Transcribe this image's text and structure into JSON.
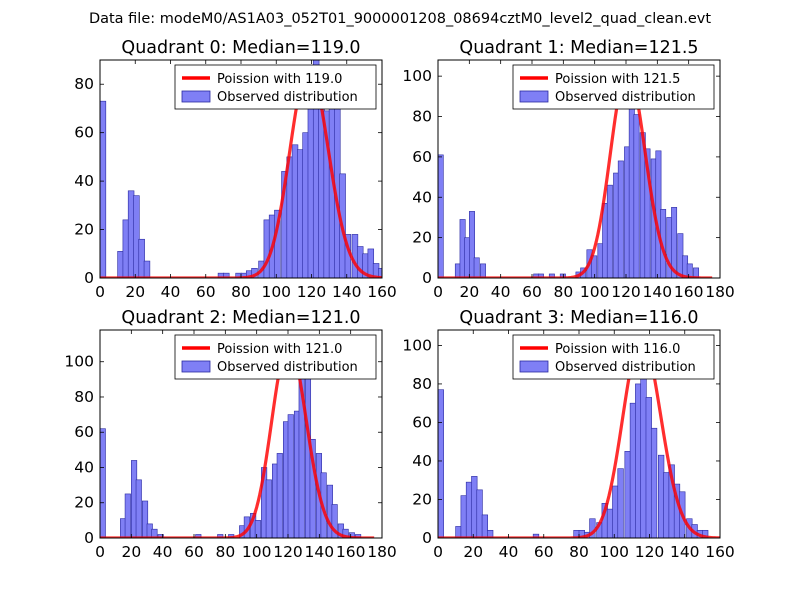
{
  "figure_title": "Data file: modeM0/AS1A03_052T01_9000001208_08694cztM0_level2_quad_clean.evt",
  "colors": {
    "bar_fill": "#7f7ff5",
    "bar_edge": "#2a2aa0",
    "poisson_line": "#ff0000",
    "axis": "#000000"
  },
  "chart_data": [
    {
      "type": "bar",
      "title": "Quadrant 0: Median=119.0",
      "median": 119.0,
      "xlim": [
        0,
        160
      ],
      "ylim": [
        0,
        90
      ],
      "xticks": [
        0,
        20,
        40,
        60,
        80,
        100,
        120,
        140,
        160
      ],
      "yticks": [
        0,
        20,
        40,
        60,
        80
      ],
      "bin_width": 3.3,
      "bins": [
        [
          0,
          73
        ],
        [
          10,
          11
        ],
        [
          13,
          24
        ],
        [
          16,
          36
        ],
        [
          19,
          34
        ],
        [
          22,
          16
        ],
        [
          25,
          7
        ],
        [
          67,
          2
        ],
        [
          70,
          2
        ],
        [
          77,
          2
        ],
        [
          80,
          2
        ],
        [
          83,
          3
        ],
        [
          86,
          4
        ],
        [
          90,
          7
        ],
        [
          93,
          24
        ],
        [
          96,
          26
        ],
        [
          99,
          28
        ],
        [
          103,
          44
        ],
        [
          106,
          50
        ],
        [
          109,
          55
        ],
        [
          112,
          53
        ],
        [
          115,
          60
        ],
        [
          118,
          70
        ],
        [
          121,
          90
        ],
        [
          124,
          85
        ],
        [
          127,
          69
        ],
        [
          130,
          82
        ],
        [
          133,
          72
        ],
        [
          136,
          43
        ],
        [
          139,
          18
        ],
        [
          143,
          18
        ],
        [
          146,
          13
        ],
        [
          149,
          10
        ],
        [
          152,
          12
        ],
        [
          155,
          6
        ],
        [
          158,
          4
        ]
      ],
      "legend": {
        "position": "top-right",
        "line_label": "Poission with 119.0",
        "bar_label": "Observed distribution"
      },
      "poisson": {
        "mean": 119.0,
        "peak": 87,
        "x_end": 160
      }
    },
    {
      "type": "bar",
      "title": "Quadrant 1: Median=121.5",
      "median": 121.5,
      "xlim": [
        0,
        180
      ],
      "ylim": [
        0,
        108
      ],
      "xticks": [
        0,
        20,
        40,
        60,
        80,
        100,
        120,
        140,
        160,
        180
      ],
      "yticks": [
        0,
        20,
        40,
        60,
        80,
        100
      ],
      "bin_width": 3.4,
      "bins": [
        [
          0,
          61
        ],
        [
          11,
          7
        ],
        [
          14,
          29
        ],
        [
          17,
          20
        ],
        [
          20,
          33
        ],
        [
          23,
          10
        ],
        [
          27,
          7
        ],
        [
          61,
          2
        ],
        [
          64,
          2
        ],
        [
          71,
          2
        ],
        [
          78,
          2
        ],
        [
          88,
          3
        ],
        [
          91,
          5
        ],
        [
          95,
          14
        ],
        [
          98,
          11
        ],
        [
          102,
          17
        ],
        [
          105,
          37
        ],
        [
          108,
          46
        ],
        [
          112,
          52
        ],
        [
          115,
          58
        ],
        [
          119,
          65
        ],
        [
          122,
          94
        ],
        [
          125,
          81
        ],
        [
          129,
          72
        ],
        [
          132,
          64
        ],
        [
          136,
          59
        ],
        [
          139,
          63
        ],
        [
          142,
          34
        ],
        [
          146,
          30
        ],
        [
          149,
          35
        ],
        [
          153,
          22
        ],
        [
          156,
          11
        ],
        [
          159,
          7
        ],
        [
          163,
          5
        ]
      ],
      "legend": {
        "position": "top-right",
        "line_label": "Poission with 121.5",
        "bar_label": "Observed distribution"
      },
      "poisson": {
        "mean": 121.5,
        "peak": 103,
        "x_end": 175
      }
    },
    {
      "type": "bar",
      "title": "Quadrant 2: Median=121.0",
      "median": 121.0,
      "xlim": [
        0,
        180
      ],
      "ylim": [
        0,
        118
      ],
      "xticks": [
        0,
        20,
        40,
        60,
        80,
        100,
        120,
        140,
        160,
        180
      ],
      "yticks": [
        0,
        20,
        40,
        60,
        80,
        100
      ],
      "bin_width": 3.5,
      "bins": [
        [
          0,
          62
        ],
        [
          13,
          11
        ],
        [
          16,
          25
        ],
        [
          20,
          44
        ],
        [
          23,
          33
        ],
        [
          27,
          21
        ],
        [
          30,
          8
        ],
        [
          33,
          5
        ],
        [
          37,
          2
        ],
        [
          61,
          2
        ],
        [
          75,
          2
        ],
        [
          82,
          2
        ],
        [
          89,
          7
        ],
        [
          92,
          12
        ],
        [
          96,
          14
        ],
        [
          99,
          10
        ],
        [
          103,
          40
        ],
        [
          106,
          33
        ],
        [
          110,
          42
        ],
        [
          113,
          48
        ],
        [
          117,
          66
        ],
        [
          120,
          70
        ],
        [
          124,
          72
        ],
        [
          127,
          110
        ],
        [
          131,
          91
        ],
        [
          134,
          56
        ],
        [
          138,
          48
        ],
        [
          141,
          37
        ],
        [
          145,
          30
        ],
        [
          148,
          19
        ],
        [
          152,
          8
        ],
        [
          155,
          5
        ],
        [
          159,
          3
        ],
        [
          163,
          2
        ]
      ],
      "legend": {
        "position": "top-right",
        "line_label": "Poission with 121.0",
        "bar_label": "Observed distribution"
      },
      "poisson": {
        "mean": 121.0,
        "peak": 110,
        "x_end": 175
      }
    },
    {
      "type": "bar",
      "title": "Quadrant 3: Median=116.0",
      "median": 116.0,
      "xlim": [
        0,
        160
      ],
      "ylim": [
        0,
        108
      ],
      "xticks": [
        0,
        20,
        40,
        60,
        80,
        100,
        120,
        140,
        160
      ],
      "yticks": [
        0,
        20,
        40,
        60,
        80,
        100
      ],
      "bin_width": 3.2,
      "bins": [
        [
          0,
          77
        ],
        [
          10,
          6
        ],
        [
          13,
          22
        ],
        [
          16,
          29
        ],
        [
          19,
          32
        ],
        [
          22,
          25
        ],
        [
          25,
          12
        ],
        [
          28,
          4
        ],
        [
          54,
          2
        ],
        [
          77,
          4
        ],
        [
          80,
          4
        ],
        [
          83,
          3
        ],
        [
          86,
          10
        ],
        [
          90,
          8
        ],
        [
          93,
          18
        ],
        [
          96,
          15
        ],
        [
          99,
          27
        ],
        [
          102,
          36
        ],
        [
          106,
          45
        ],
        [
          109,
          70
        ],
        [
          112,
          80
        ],
        [
          115,
          98
        ],
        [
          118,
          73
        ],
        [
          121,
          57
        ],
        [
          125,
          43
        ],
        [
          128,
          34
        ],
        [
          131,
          38
        ],
        [
          134,
          28
        ],
        [
          137,
          24
        ],
        [
          141,
          10
        ],
        [
          144,
          7
        ],
        [
          147,
          4
        ],
        [
          150,
          4
        ]
      ],
      "legend": {
        "position": "top-right",
        "line_label": "Poission with 116.0",
        "bar_label": "Observed distribution"
      },
      "poisson": {
        "mean": 116.0,
        "peak": 104,
        "x_end": 160
      }
    }
  ]
}
